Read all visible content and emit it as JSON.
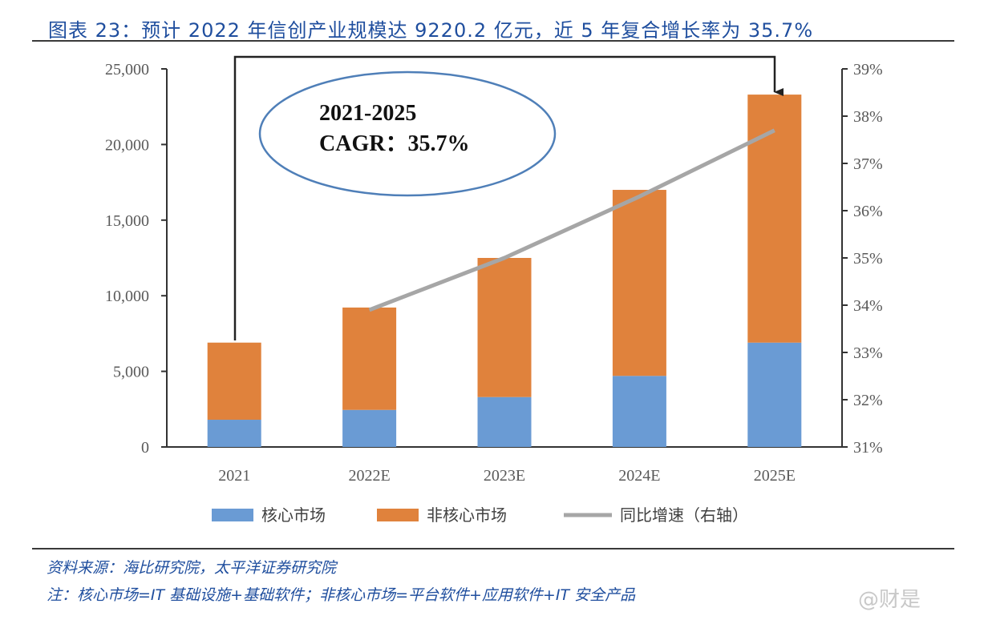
{
  "title": "图表 23：预计 2022 年信创产业规模达 9220.2 亿元，近 5 年复合增长率为 35.7%",
  "source": "资料来源：海比研究院，太平洋证券研究院",
  "note": "注：核心市场=IT 基础设施+基础软件；非核心市场=平台软件+应用软件+IT 安全产品",
  "watermark": "@财是",
  "annotation": {
    "line1": "2021-2025",
    "line2": "CAGR：35.7%"
  },
  "colors": {
    "core": "#6a9bd4",
    "noncore": "#e0823c",
    "growth": "#a6a6a6",
    "ellipse": "#4f7fb8",
    "title": "#1f4e9e"
  },
  "chart_data": {
    "type": "bar",
    "stacked": true,
    "categories": [
      "2021",
      "2022E",
      "2023E",
      "2024E",
      "2025E"
    ],
    "series": [
      {
        "name": "核心市场",
        "type": "bar",
        "axis": "left",
        "values": [
          1800,
          2450,
          3300,
          4700,
          6900
        ]
      },
      {
        "name": "非核心市场",
        "type": "bar",
        "axis": "left",
        "values": [
          5100,
          6770,
          9200,
          12300,
          16400
        ]
      },
      {
        "name": "同比增速（右轴）",
        "type": "line",
        "axis": "right",
        "values": [
          null,
          33.9,
          35.0,
          36.3,
          37.7
        ]
      }
    ],
    "y_left": {
      "lim": [
        0,
        25000
      ],
      "ticks": [
        "0",
        "5,000",
        "10,000",
        "15,000",
        "20,000",
        "25,000"
      ]
    },
    "y_right": {
      "lim": [
        31,
        39
      ],
      "ticks": [
        "31%",
        "32%",
        "33%",
        "34%",
        "35%",
        "36%",
        "37%",
        "38%",
        "39%"
      ]
    },
    "legend_position": "bottom",
    "grid": false
  }
}
